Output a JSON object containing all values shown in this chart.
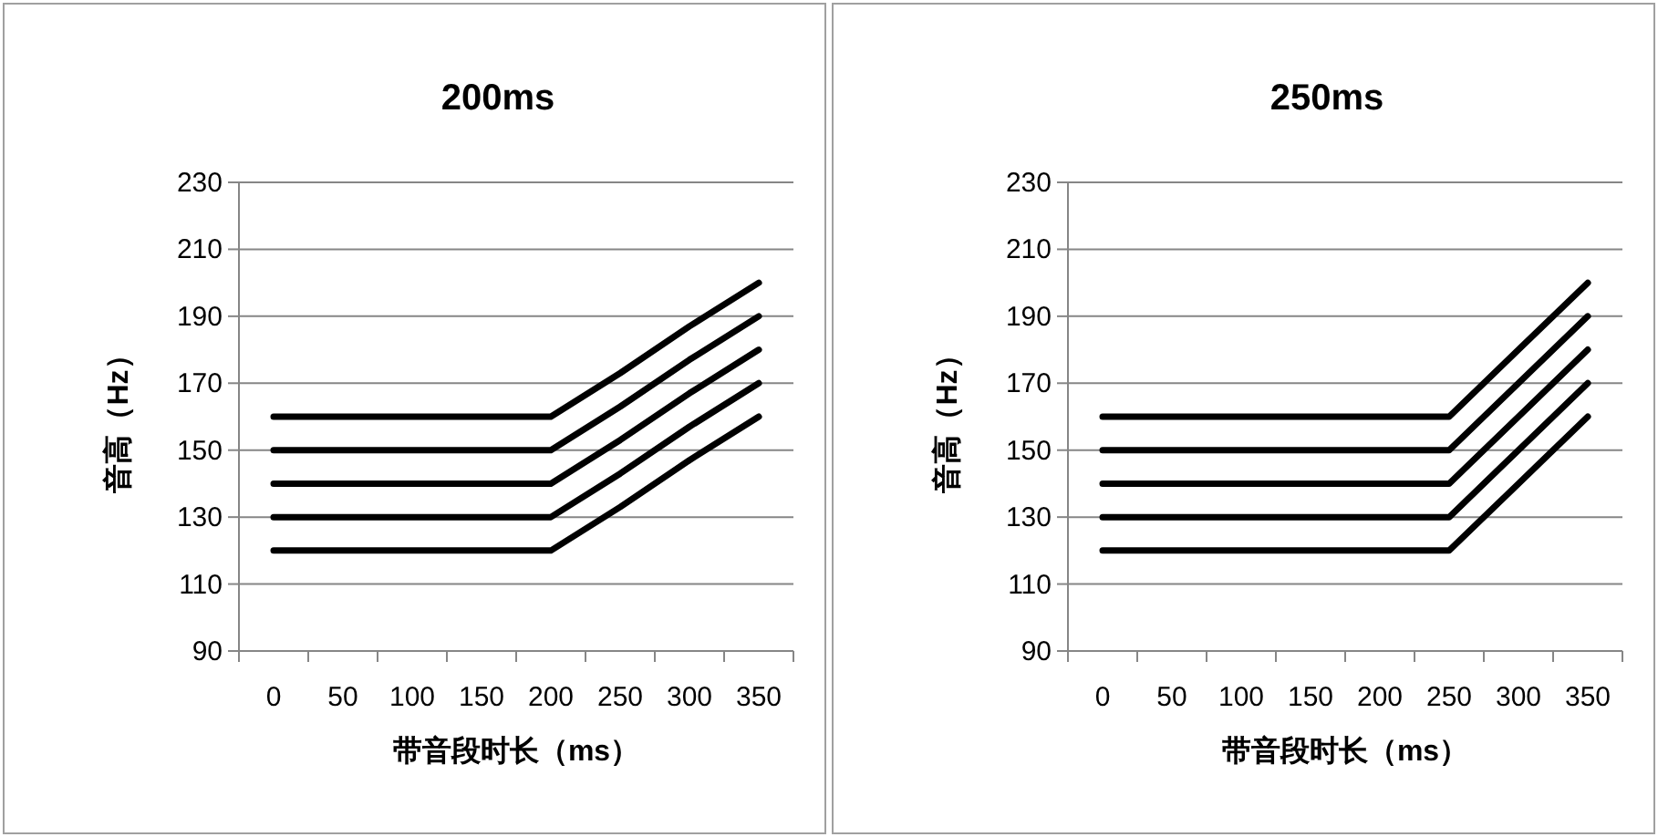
{
  "chart_data": [
    {
      "type": "line",
      "title": "200ms",
      "xlabel": "带音段时长（ms）",
      "ylabel": "音高（Hz）",
      "categories": [
        "0",
        "50",
        "100",
        "150",
        "200",
        "250",
        "300",
        "350"
      ],
      "ylim": [
        90,
        230
      ],
      "yticks": [
        90,
        110,
        130,
        150,
        170,
        190,
        210,
        230
      ],
      "grid": "y",
      "series": [
        {
          "color": "#000000",
          "values": [
            120,
            120,
            120,
            120,
            120,
            133,
            147,
            160
          ]
        },
        {
          "color": "#000000",
          "values": [
            130,
            130,
            130,
            130,
            130,
            143,
            157,
            170
          ]
        },
        {
          "color": "#000000",
          "values": [
            140,
            140,
            140,
            140,
            140,
            153,
            167,
            180
          ]
        },
        {
          "color": "#000000",
          "values": [
            150,
            150,
            150,
            150,
            150,
            163,
            177,
            190
          ]
        },
        {
          "color": "#000000",
          "values": [
            160,
            160,
            160,
            160,
            160,
            173,
            187,
            200
          ]
        }
      ]
    },
    {
      "type": "line",
      "title": "250ms",
      "xlabel": "带音段时长（ms）",
      "ylabel": "音高（Hz）",
      "categories": [
        "0",
        "50",
        "100",
        "150",
        "200",
        "250",
        "300",
        "350"
      ],
      "ylim": [
        90,
        230
      ],
      "yticks": [
        90,
        110,
        130,
        150,
        170,
        190,
        210,
        230
      ],
      "grid": "y",
      "series": [
        {
          "color": "#000000",
          "values": [
            120,
            120,
            120,
            120,
            120,
            120,
            140,
            160
          ]
        },
        {
          "color": "#000000",
          "values": [
            130,
            130,
            130,
            130,
            130,
            130,
            150,
            170
          ]
        },
        {
          "color": "#000000",
          "values": [
            140,
            140,
            140,
            140,
            140,
            140,
            160,
            180
          ]
        },
        {
          "color": "#000000",
          "values": [
            150,
            150,
            150,
            150,
            150,
            150,
            170,
            190
          ]
        },
        {
          "color": "#000000",
          "values": [
            160,
            160,
            160,
            160,
            160,
            160,
            180,
            200
          ]
        }
      ]
    }
  ]
}
